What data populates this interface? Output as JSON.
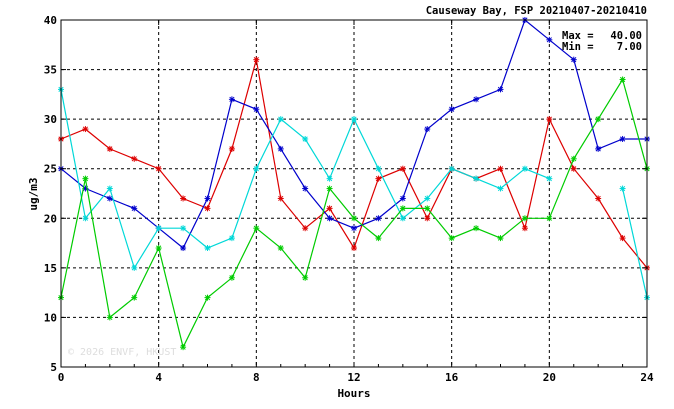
{
  "chart_data": {
    "type": "line",
    "title": "Causeway Bay, FSP 20210407-20210410",
    "xlabel": "Hours",
    "ylabel": "ug/m3",
    "xlim": [
      0,
      24
    ],
    "ylim": [
      5,
      40
    ],
    "xticks": [
      "0",
      "4",
      "8",
      "12",
      "16",
      "20",
      "24"
    ],
    "yticks": [
      "5",
      "10",
      "15",
      "20",
      "25",
      "30",
      "35",
      "40"
    ],
    "grid": true,
    "legend": "none",
    "annotations": {
      "max_label": "Max =",
      "max_value": "40.00",
      "min_label": "Min =",
      "min_value": "7.00"
    },
    "watermark": "© 2026  ENVF, HKUST",
    "x": [
      0,
      1,
      2,
      3,
      4,
      5,
      6,
      7,
      8,
      9,
      10,
      11,
      12,
      13,
      14,
      15,
      16,
      17,
      18,
      19,
      20,
      21,
      22,
      23,
      24
    ],
    "series": [
      {
        "color": "#dd0000",
        "values": [
          28,
          29,
          27,
          26,
          25,
          22,
          21,
          27,
          36,
          22,
          19,
          21,
          17,
          24,
          25,
          20,
          25,
          24,
          25,
          19,
          30,
          25,
          22,
          18,
          15
        ]
      },
      {
        "color": "#0000cc",
        "values": [
          25,
          23,
          22,
          21,
          19,
          17,
          22,
          32,
          31,
          27,
          23,
          20,
          19,
          20,
          22,
          29,
          31,
          32,
          33,
          40,
          38,
          36,
          27,
          28,
          28
        ]
      },
      {
        "color": "#00d8d8",
        "values": [
          33,
          20,
          23,
          15,
          19,
          19,
          17,
          18,
          25,
          30,
          28,
          24,
          30,
          25,
          20,
          22,
          25,
          24,
          23,
          25,
          24,
          null,
          null,
          23,
          12
        ]
      },
      {
        "color": "#00cc00",
        "values": [
          12,
          24,
          10,
          12,
          17,
          7,
          12,
          14,
          19,
          17,
          14,
          23,
          20,
          18,
          21,
          21,
          18,
          19,
          18,
          20,
          20,
          26,
          30,
          34,
          25
        ]
      }
    ]
  }
}
